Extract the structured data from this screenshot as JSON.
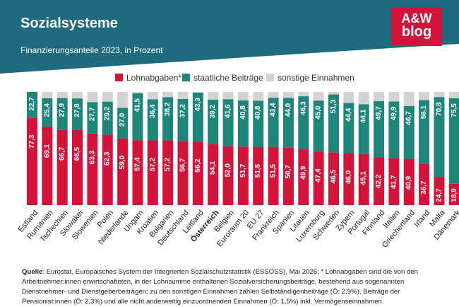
{
  "header": {
    "title": "Sozialsysteme",
    "subtitle": "Finanzierungsanteile 2023, in Prozent",
    "logo_line1": "A&W",
    "logo_line2": "blog"
  },
  "colors": {
    "header_bg": "#1e6b80",
    "lohn": "#d3143a",
    "staat": "#1e857a",
    "sonst": "#d3d3d3"
  },
  "source": {
    "label": "Quelle",
    "text": ": Eurostat, Europäisches System der Integrierten Sozialschutzstatistik (ESSOSS), Mai 2026; * Lohnabgaben sind die von den Arbeitnehmer:innen erwirtschafteten, in der Lohnsumme enthaltenen Sozialversicherungsbeiträge, bestehend aus sogenannten Dienstnehmer- und Dienstgeberbeiträgen; zu den sonstigen Einnahmen zählen Selbständigenbeiträge (Ö: 2,9%), Beiträge der Pensionist:innen (Ö: 2,3%) und alle nicht anderweitig einzuordnenden Einnahmen (Ö: 1,5%) inkl. Vermögenseinnahmen."
  },
  "chart_data": {
    "type": "bar",
    "stacked": true,
    "ylim": [
      0,
      100
    ],
    "legend_position": "top",
    "categories": [
      "Estland",
      "Rumänien",
      "Tschechien",
      "Slowakei",
      "Slowenien",
      "Polen",
      "Niederlande",
      "Ungarn",
      "Kroatien",
      "Bulgarien",
      "Deutschland",
      "Lettland",
      "Österreich",
      "Belgien",
      "Euroraum 20",
      "EU 27",
      "Frankreich",
      "Spanien",
      "Litauen",
      "Luxemburg",
      "Schweden",
      "Zypern",
      "Portugal",
      "Finnland",
      "Italien",
      "Griechenland",
      "Irland",
      "Malta",
      "Dänemark"
    ],
    "highlight_category": "Österreich",
    "series": [
      {
        "name": "Lohnabgaben*",
        "values": [
          77.3,
          69.1,
          66.7,
          66.5,
          63.3,
          62.3,
          59.0,
          57.4,
          57.2,
          57.2,
          56.7,
          56.2,
          54.1,
          52.0,
          51.7,
          51.5,
          51.5,
          50.7,
          49.9,
          47.4,
          46.5,
          46.0,
          45.1,
          42.2,
          41.7,
          40.9,
          36.7,
          24.7,
          18.9
        ],
        "labels": [
          "77,3",
          "69,1",
          "66,7",
          "66,5",
          "63,3",
          "62,3",
          "59,0",
          "57,4",
          "57,2",
          "57,2",
          "56,7",
          "56,2",
          "54,1",
          "52,0",
          "51,7",
          "51,5",
          "51,5",
          "50,7",
          "49,9",
          "47,4",
          "46,5",
          "46,0",
          "45,1",
          "42,2",
          "41,7",
          "40,9",
          "36,7",
          "24,7",
          "18,9"
        ]
      },
      {
        "name": "staatliche Beiträge",
        "values": [
          22.7,
          25.4,
          27.9,
          27.8,
          27.7,
          29.2,
          27.0,
          41.5,
          36.4,
          38.2,
          37.2,
          43.3,
          39.2,
          41.6,
          40.8,
          40.8,
          43.4,
          44.0,
          46.3,
          45.0,
          51.3,
          44.4,
          44.1,
          49.7,
          49.9,
          46.7,
          56.1,
          70.8,
          75.5
        ],
        "labels": [
          "22,7",
          "25,4",
          "27,9",
          "27,8",
          "27,7",
          "29,2",
          "27,0",
          "41,5",
          "36,4",
          "38,2",
          "37,2",
          "43,3",
          "39,2",
          "41,6",
          "40,8",
          "40,8",
          "43,4",
          "44,0",
          "46,3",
          "45,0",
          "51,3",
          "44,4",
          "44,1",
          "49,7",
          "49,9",
          "46,7",
          "56,1",
          "70,8",
          "75,5"
        ]
      },
      {
        "name": "sonstige Einnahmen",
        "values": [
          0.0,
          5.5,
          5.4,
          5.7,
          9.0,
          8.5,
          14.0,
          1.1,
          6.4,
          4.6,
          6.1,
          0.5,
          6.7,
          6.4,
          7.5,
          7.7,
          5.1,
          5.3,
          3.8,
          7.6,
          2.2,
          9.6,
          10.8,
          8.1,
          8.4,
          12.4,
          7.2,
          4.5,
          5.6
        ]
      }
    ]
  }
}
